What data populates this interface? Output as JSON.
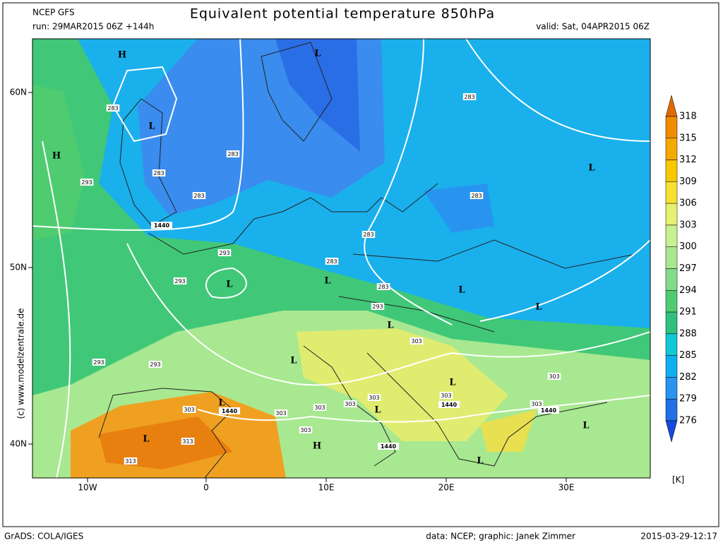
{
  "header": {
    "model": "NCEP GFS",
    "run": "run: 29MAR2015 06Z +144h",
    "title": "Equivalent potential temperature 850hPa",
    "valid": "valid: Sat, 04APR2015 06Z"
  },
  "map": {
    "lat_labels": [
      "60N",
      "50N",
      "40N"
    ],
    "lon_labels": [
      "10W",
      "0",
      "10E",
      "20E",
      "30E"
    ],
    "labels": [
      "H",
      "L",
      "L",
      "H",
      "283",
      "283",
      "283",
      "283",
      "293",
      "1440",
      "283",
      "283",
      "L",
      "283",
      "293",
      "283",
      "L",
      "L",
      "293",
      "283",
      "293",
      "L",
      "L",
      "L",
      "303",
      "293",
      "293",
      "L",
      "L",
      "303",
      "L",
      "1440",
      "303",
      "303",
      "303",
      "303",
      "303",
      "303",
      "1440",
      "L",
      "1440",
      "303",
      "L",
      "L",
      "313",
      "303",
      "H",
      "1440",
      "313",
      "L"
    ]
  },
  "colorbar": {
    "labels": [
      318,
      315,
      312,
      309,
      306,
      303,
      300,
      297,
      294,
      291,
      288,
      285,
      282,
      279,
      276
    ],
    "colors": [
      "#e06a00",
      "#f08c00",
      "#f5aa00",
      "#fac800",
      "#f8e030",
      "#e8f070",
      "#c8f090",
      "#a8e890",
      "#80dc88",
      "#50cc70",
      "#30c080",
      "#10c8d8",
      "#10b0f0",
      "#2894f0",
      "#2070e8",
      "#1848e0"
    ],
    "unit": "[K]"
  },
  "credit": "(c) www.modelzentrale.de",
  "footer": {
    "software": "GrADS: COLA/IGES",
    "source": "data: NCEP; graphic: Janek Zimmer",
    "timestamp": "2015-03-29-12:17"
  }
}
